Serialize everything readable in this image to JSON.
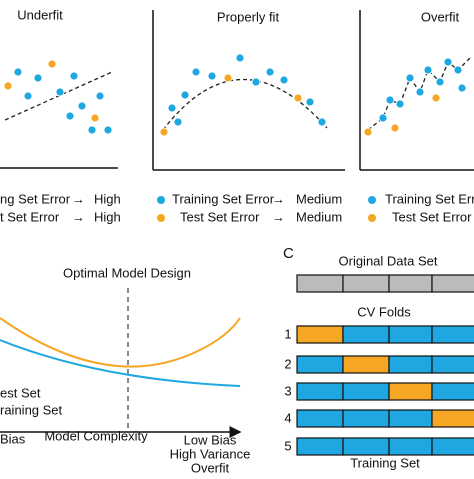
{
  "panels": [
    {
      "title": "Underfit",
      "legend": [
        {
          "label": "ng Set Error",
          "result": "High"
        },
        {
          "label": "t Set Error",
          "result": "High"
        }
      ]
    },
    {
      "title": "Properly fit",
      "legend": [
        {
          "label": "Training Set Error",
          "result": "Medium"
        },
        {
          "label": "Test Set Error",
          "result": "Medium"
        }
      ]
    },
    {
      "title": "Overfit",
      "legend": [
        {
          "label": "Training Set Error"
        },
        {
          "label": "Test Set Error"
        }
      ]
    }
  ],
  "complexity": {
    "title": "Optimal Model Design",
    "curves": [
      "est Set",
      "raining Set"
    ],
    "x_label": "Model Complexity",
    "left_label": "Bias",
    "right_label": [
      "Low Bias",
      "High Variance",
      "Overfit"
    ]
  },
  "cv": {
    "panel_label": "C",
    "original": "Original Data Set",
    "folds_title": "CV Folds",
    "folds": [
      "1",
      "2",
      "3",
      "4",
      "5"
    ],
    "footer": "Training Set"
  }
}
